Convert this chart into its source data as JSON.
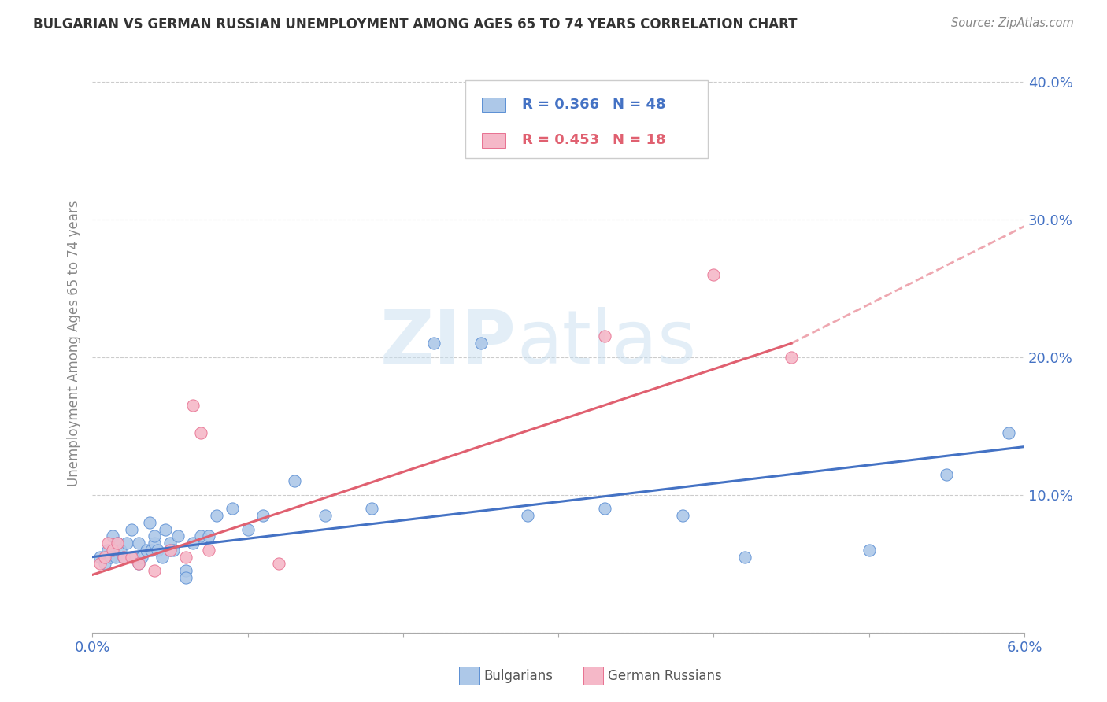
{
  "title": "BULGARIAN VS GERMAN RUSSIAN UNEMPLOYMENT AMONG AGES 65 TO 74 YEARS CORRELATION CHART",
  "source": "Source: ZipAtlas.com",
  "ylabel": "Unemployment Among Ages 65 to 74 years",
  "xlim": [
    0.0,
    0.06
  ],
  "ylim": [
    0.0,
    0.42
  ],
  "ytick_labels": [
    "",
    "10.0%",
    "20.0%",
    "30.0%",
    "40.0%"
  ],
  "xtick_labels": [
    "0.0%",
    "",
    "",
    "",
    "",
    "",
    "6.0%"
  ],
  "blue_color": "#adc8e8",
  "pink_color": "#f5b8c8",
  "blue_edge_color": "#5b8fd4",
  "pink_edge_color": "#e87090",
  "blue_line_color": "#4472c4",
  "pink_line_color": "#e06070",
  "blue_text_color": "#4472c4",
  "pink_text_color": "#e06070",
  "watermark_color": "#c8dff0",
  "blue_x": [
    0.0005,
    0.0008,
    0.001,
    0.0012,
    0.0013,
    0.0015,
    0.0016,
    0.0018,
    0.002,
    0.0022,
    0.0025,
    0.0027,
    0.003,
    0.003,
    0.0032,
    0.0035,
    0.0037,
    0.0038,
    0.004,
    0.004,
    0.0042,
    0.0045,
    0.0047,
    0.005,
    0.005,
    0.0052,
    0.0055,
    0.006,
    0.006,
    0.0065,
    0.007,
    0.0075,
    0.008,
    0.009,
    0.01,
    0.011,
    0.013,
    0.015,
    0.018,
    0.022,
    0.025,
    0.028,
    0.033,
    0.038,
    0.042,
    0.05,
    0.055,
    0.059
  ],
  "blue_y": [
    0.055,
    0.05,
    0.06,
    0.055,
    0.07,
    0.055,
    0.065,
    0.06,
    0.055,
    0.065,
    0.075,
    0.055,
    0.05,
    0.065,
    0.055,
    0.06,
    0.08,
    0.06,
    0.065,
    0.07,
    0.06,
    0.055,
    0.075,
    0.06,
    0.065,
    0.06,
    0.07,
    0.045,
    0.04,
    0.065,
    0.07,
    0.07,
    0.085,
    0.09,
    0.075,
    0.085,
    0.11,
    0.085,
    0.09,
    0.21,
    0.21,
    0.085,
    0.09,
    0.085,
    0.055,
    0.06,
    0.115,
    0.145
  ],
  "pink_x": [
    0.0005,
    0.0008,
    0.001,
    0.0013,
    0.0016,
    0.002,
    0.0025,
    0.003,
    0.004,
    0.005,
    0.006,
    0.0065,
    0.007,
    0.0075,
    0.012,
    0.033,
    0.04,
    0.045
  ],
  "pink_y": [
    0.05,
    0.055,
    0.065,
    0.06,
    0.065,
    0.055,
    0.055,
    0.05,
    0.045,
    0.06,
    0.055,
    0.165,
    0.145,
    0.06,
    0.05,
    0.215,
    0.26,
    0.2
  ],
  "blue_trend": [
    0.0,
    0.06,
    0.055,
    0.135
  ],
  "pink_trend_solid": [
    0.0,
    0.045,
    0.042,
    0.21
  ],
  "pink_trend_dashed": [
    0.045,
    0.06,
    0.21,
    0.295
  ]
}
